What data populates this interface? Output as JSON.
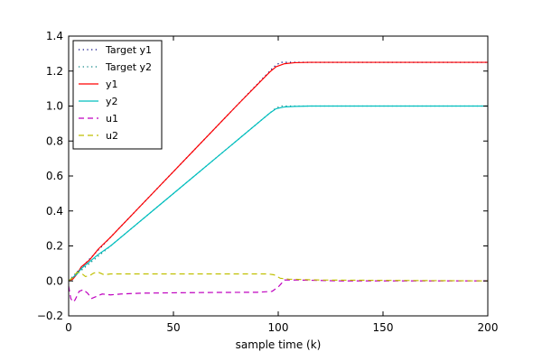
{
  "chart_data": {
    "type": "line",
    "title": "",
    "xlabel": "sample time (k)",
    "ylabel": "",
    "xlim": [
      0,
      200
    ],
    "ylim": [
      -0.2,
      1.4
    ],
    "xticks": [
      0,
      50,
      100,
      150,
      200
    ],
    "xtick_labels": [
      "0",
      "50",
      "100",
      "150",
      "200"
    ],
    "yticks": [
      -0.2,
      0.0,
      0.2,
      0.4,
      0.6,
      0.8,
      1.0,
      1.2,
      1.4
    ],
    "ytick_labels": [
      "−0.2",
      "0.0",
      "0.2",
      "0.4",
      "0.6",
      "0.8",
      "1.0",
      "1.2",
      "1.4"
    ],
    "grid": false,
    "legend_position": "top-left",
    "series": [
      {
        "name": "Target y1",
        "color": "#000080",
        "style": "dotted",
        "x": [
          0,
          98,
          101,
          200
        ],
        "y": [
          0.0,
          1.225,
          1.25,
          1.25
        ]
      },
      {
        "name": "Target y2",
        "color": "#008080",
        "style": "dotted",
        "x": [
          0,
          98,
          101,
          200
        ],
        "y": [
          0.0,
          0.98,
          1.0,
          1.0
        ]
      },
      {
        "name": "y1",
        "color": "#ff0000",
        "style": "solid",
        "x": [
          0,
          2,
          4,
          6,
          8,
          10,
          12,
          14,
          20,
          40,
          60,
          80,
          96,
          99,
          103,
          108,
          115,
          200
        ],
        "y": [
          0.0,
          0.01,
          0.04,
          0.08,
          0.1,
          0.12,
          0.15,
          0.18,
          0.25,
          0.5,
          0.75,
          1.0,
          1.195,
          1.225,
          1.242,
          1.248,
          1.25,
          1.25
        ]
      },
      {
        "name": "y2",
        "color": "#00bfbf",
        "style": "solid",
        "x": [
          0,
          2,
          4,
          6,
          8,
          10,
          12,
          14,
          20,
          40,
          60,
          80,
          96,
          99,
          103,
          108,
          115,
          200
        ],
        "y": [
          0.0,
          0.02,
          0.04,
          0.07,
          0.09,
          0.11,
          0.13,
          0.15,
          0.2,
          0.4,
          0.6,
          0.8,
          0.96,
          0.985,
          0.995,
          0.998,
          1.0,
          1.0
        ]
      },
      {
        "name": "u1",
        "color": "#bf00bf",
        "style": "dashed",
        "x": [
          0,
          1,
          2,
          3,
          5,
          7,
          9,
          11,
          13,
          16,
          20,
          25,
          35,
          50,
          70,
          90,
          97,
          100,
          103,
          110,
          130,
          200
        ],
        "y": [
          -0.03,
          -0.1,
          -0.12,
          -0.11,
          -0.06,
          -0.05,
          -0.07,
          -0.1,
          -0.09,
          -0.075,
          -0.08,
          -0.075,
          -0.07,
          -0.068,
          -0.066,
          -0.065,
          -0.06,
          -0.035,
          0.005,
          0.005,
          0.0,
          0.0
        ]
      },
      {
        "name": "u2",
        "color": "#bfbf00",
        "style": "dashed",
        "x": [
          0,
          2,
          4,
          6,
          8,
          10,
          12,
          14,
          17,
          20,
          25,
          40,
          60,
          80,
          95,
          98,
          101,
          105,
          120,
          200
        ],
        "y": [
          0.0,
          0.02,
          0.05,
          0.045,
          0.025,
          0.03,
          0.045,
          0.05,
          0.035,
          0.04,
          0.04,
          0.04,
          0.04,
          0.04,
          0.04,
          0.035,
          0.015,
          0.01,
          0.005,
          0.0
        ]
      }
    ]
  }
}
